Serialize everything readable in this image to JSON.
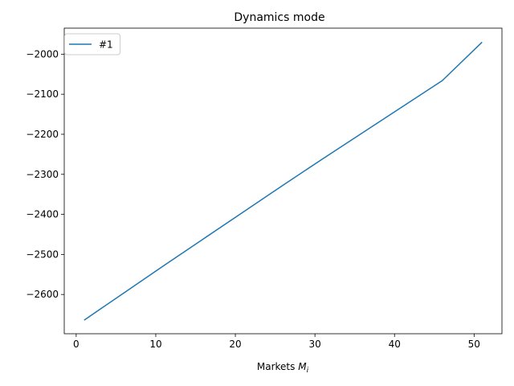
{
  "chart_data": {
    "type": "line",
    "title": "Dynamics mode",
    "xlabel_prefix": "Markets ",
    "xlabel_var": "M",
    "xlabel_sub": "i",
    "ylabel": "",
    "xlim": [
      -1.5,
      53.5
    ],
    "ylim": [
      -2698,
      -1935
    ],
    "xticks": [
      0,
      10,
      20,
      30,
      40,
      50
    ],
    "yticks": [
      -2600,
      -2500,
      -2400,
      -2300,
      -2200,
      -2100,
      -2000
    ],
    "ytick_labels": [
      "−2600",
      "−2500",
      "−2400",
      "−2300",
      "−2200",
      "−2100",
      "−2000"
    ],
    "grid": false,
    "legend_position": "upper-left",
    "series": [
      {
        "name": "#1",
        "color": "#1f77b4",
        "x": [
          1,
          6,
          11,
          16,
          21,
          26,
          31,
          36,
          41,
          46,
          51
        ],
        "y": [
          -2664,
          -2596,
          -2528,
          -2461,
          -2394,
          -2327,
          -2261,
          -2196,
          -2131,
          -2066,
          -1970
        ]
      }
    ]
  }
}
